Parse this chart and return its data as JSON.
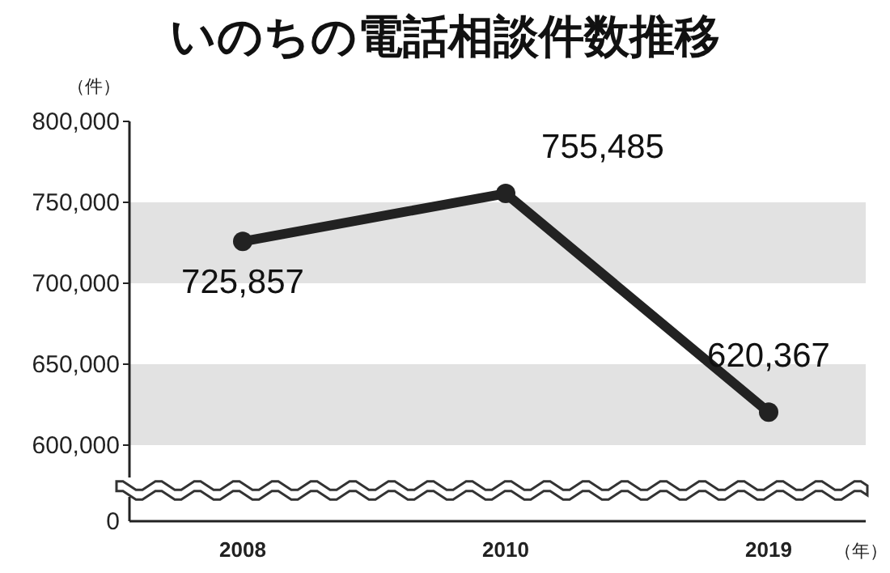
{
  "chart_data": {
    "type": "line",
    "title": "いのちの電話相談件数推移",
    "ylabel": "（件）",
    "xlabel": "（年）",
    "categories": [
      "2008",
      "2010",
      "2019"
    ],
    "series": [
      {
        "color": "#222222",
        "values": [
          725857,
          755485,
          620367
        ],
        "value_labels": [
          "725,857",
          "755,485",
          "620,367"
        ]
      }
    ],
    "ylim": [
      580000,
      800000
    ],
    "yticks": [
      {
        "value": 600000,
        "label": "600,000"
      },
      {
        "value": 650000,
        "label": "650,000"
      },
      {
        "value": 700000,
        "label": "700,000"
      },
      {
        "value": 750000,
        "label": "750,000"
      },
      {
        "value": 800000,
        "label": "800,000"
      }
    ],
    "bands": [
      {
        "axis": "y",
        "from": 700000,
        "to": 750000,
        "color": "#e2e2e2"
      },
      {
        "axis": "y",
        "from": 600000,
        "to": 650000,
        "color": "#e2e2e2"
      }
    ],
    "annotations": [
      "0"
    ],
    "marker": "circle",
    "line_style": "solid"
  }
}
